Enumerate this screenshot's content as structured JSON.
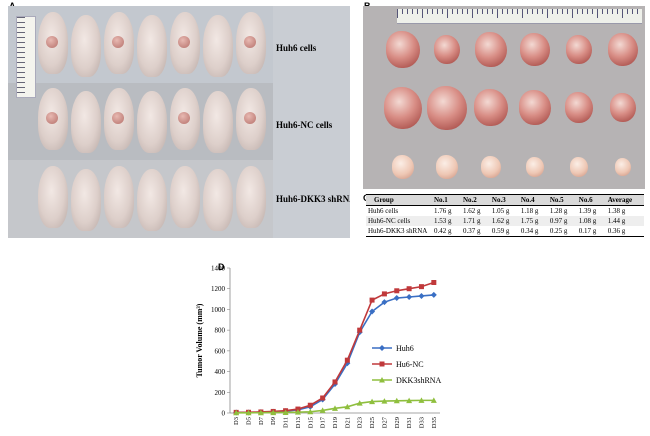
{
  "panelA": {
    "letter": "A",
    "groups": [
      {
        "label": "Huh6 cells"
      },
      {
        "label": "Huh6-NC cells"
      },
      {
        "label": "Huh6-DKK3 shRNA"
      }
    ]
  },
  "panelB": {
    "letter": "B"
  },
  "panelC": {
    "letter": "C",
    "headers": [
      "Group",
      "No.1",
      "No.2",
      "No.3",
      "No.4",
      "No.5",
      "No.6",
      "Average"
    ],
    "rows": [
      [
        "Huh6 cells",
        "1.76  g",
        "1.62  g",
        "1.05  g",
        "1.18  g",
        "1.28  g",
        "1.39  g",
        "1.38  g"
      ],
      [
        "Huh6-NC cells",
        "1.53  g",
        "1.71  g",
        "1.62  g",
        "1.75  g",
        "0.97  g",
        "1.08  g",
        "1.44  g"
      ],
      [
        "Huh6-DKK3 shRNA",
        "0.42  g",
        "0.37  g",
        "0.59  g",
        "0.34  g",
        "0.25  g",
        "0.17  g",
        "0.36  g"
      ]
    ]
  },
  "panelD": {
    "letter": "D",
    "chart_data": {
      "type": "line",
      "ylabel": "Tumor Volume (mm³)",
      "xlabel": "",
      "ylim": [
        0,
        1400
      ],
      "yticks": [
        0,
        200,
        400,
        600,
        800,
        1000,
        1200,
        1400
      ],
      "x": [
        "D3",
        "D5",
        "D7",
        "D9",
        "D11",
        "D13",
        "D15",
        "D17",
        "D19",
        "D21",
        "D23",
        "D25",
        "D27",
        "D29",
        "D31",
        "D33",
        "D35"
      ],
      "legend_position": "right",
      "grid": false,
      "series": [
        {
          "name": "Huh6",
          "color": "#3a6fc4",
          "marker": "diamond",
          "values": [
            5,
            5,
            8,
            12,
            18,
            30,
            60,
            130,
            280,
            480,
            780,
            980,
            1070,
            1110,
            1120,
            1130,
            1140
          ]
        },
        {
          "name": "Hu6-NC",
          "color": "#c0393b",
          "marker": "square",
          "values": [
            6,
            7,
            10,
            15,
            22,
            38,
            75,
            145,
            300,
            510,
            800,
            1090,
            1150,
            1180,
            1200,
            1220,
            1260
          ]
        },
        {
          "name": "DKK3shRNA",
          "color": "#8fbf3e",
          "marker": "triangle",
          "values": [
            2,
            2,
            3,
            4,
            5,
            8,
            12,
            25,
            45,
            60,
            95,
            110,
            115,
            118,
            120,
            122,
            122
          ]
        }
      ]
    }
  }
}
